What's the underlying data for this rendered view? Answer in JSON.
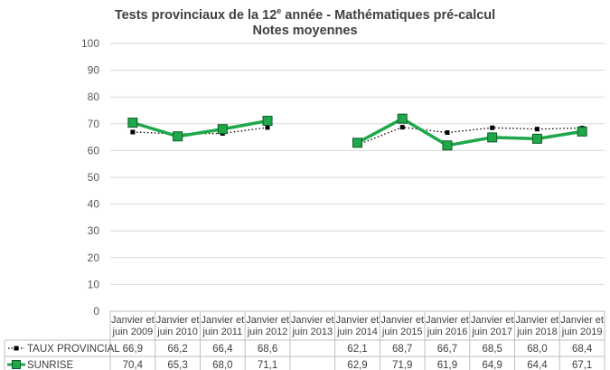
{
  "chart_data": {
    "type": "line",
    "title_line1_prefix": "Tests provinciaux de la 12",
    "title_line1_sup": "e",
    "title_line1_suffix": " année - Mathématiques pré-calcul",
    "title_line2": "Notes moyennes",
    "ylim": [
      0,
      100
    ],
    "yticks": [
      0,
      10,
      20,
      30,
      40,
      50,
      60,
      70,
      80,
      90,
      100
    ],
    "grid": true,
    "categories": [
      [
        "Janvier et",
        "juin 2009"
      ],
      [
        "Janvier et",
        "juin 2010"
      ],
      [
        "Janvier et",
        "juin 2011"
      ],
      [
        "Janvier et",
        "juin 2012"
      ],
      [
        "Janvier et",
        "juin 2013"
      ],
      [
        "Janvier et",
        "juin 2014"
      ],
      [
        "Janvier et",
        "juin 2015"
      ],
      [
        "Janvier et",
        "juin 2016"
      ],
      [
        "Janvier et",
        "juin 2017"
      ],
      [
        "Janvier et",
        "juin 2018"
      ],
      [
        "Janvier et",
        "juin 2019"
      ]
    ],
    "series": [
      {
        "name": "TAUX PROVINCIAL",
        "color": "#000000",
        "values": [
          66.9,
          66.2,
          66.4,
          68.6,
          null,
          62.1,
          68.7,
          66.7,
          68.5,
          68.0,
          68.4
        ],
        "labels": [
          "66,9",
          "66,2",
          "66,4",
          "68,6",
          "",
          "62,1",
          "68,7",
          "66,7",
          "68,5",
          "68,0",
          "68,4"
        ]
      },
      {
        "name": "SUNRISE",
        "color": "#1EA84A",
        "values": [
          70.4,
          65.3,
          68.0,
          71.1,
          null,
          62.9,
          71.9,
          61.9,
          64.9,
          64.4,
          67.1
        ],
        "labels": [
          "70,4",
          "65,3",
          "68,0",
          "71,1",
          "",
          "62,9",
          "71,9",
          "61,9",
          "64,9",
          "64,4",
          "67,1"
        ]
      }
    ]
  }
}
